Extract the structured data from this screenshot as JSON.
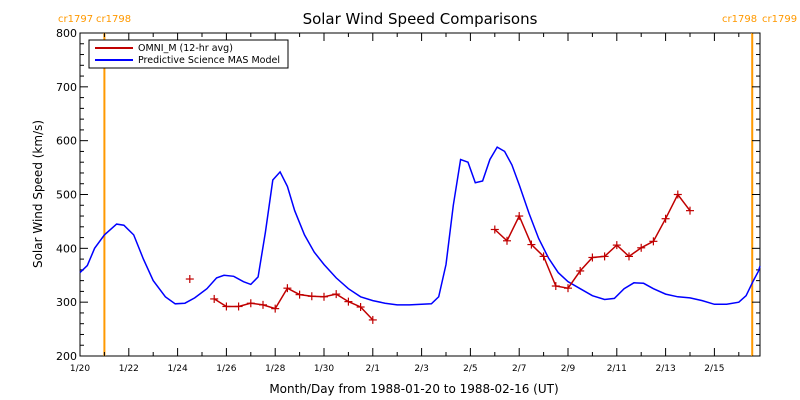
{
  "chart_data": {
    "type": "line",
    "title": "Solar Wind Speed Comparisons",
    "xlabel": "Month/Day from 1988-01-20 to 1988-02-16 (UT)",
    "ylabel": "Solar Wind Speed (km/s)",
    "x_unit": "day",
    "xlim": [
      0,
      27.6
    ],
    "ylim": [
      200,
      800
    ],
    "x_ticks": [
      {
        "x": 0,
        "label": "1/20"
      },
      {
        "x": 2,
        "label": "1/22"
      },
      {
        "x": 4,
        "label": "1/24"
      },
      {
        "x": 6,
        "label": "1/26"
      },
      {
        "x": 8,
        "label": "1/28"
      },
      {
        "x": 10,
        "label": "1/30"
      },
      {
        "x": 12,
        "label": "2/1"
      },
      {
        "x": 14,
        "label": "2/3"
      },
      {
        "x": 16,
        "label": "2/5"
      },
      {
        "x": 18,
        "label": "2/7"
      },
      {
        "x": 20,
        "label": "2/9"
      },
      {
        "x": 22,
        "label": "2/11"
      },
      {
        "x": 24,
        "label": "2/13"
      },
      {
        "x": 26,
        "label": "2/15"
      }
    ],
    "y_ticks": [
      200,
      300,
      400,
      500,
      600,
      700,
      800
    ],
    "grid": false,
    "legend_position": "top-left",
    "colors": {
      "omni": "#c00000",
      "model": "#0000ff",
      "rotation": "#ff9900"
    },
    "carrington_rotations": [
      {
        "x": 1.0,
        "label_left": "cr1797",
        "label_right": "cr1798"
      },
      {
        "x": 27.55,
        "label_left": "cr1798",
        "label_right": "cr1799"
      }
    ],
    "series": [
      {
        "name": "OMNI_M (12-hr avg)",
        "color": "#c00000",
        "marker": "+",
        "segments": [
          [
            [
              4.5,
              343
            ]
          ],
          [
            [
              5.5,
              306
            ],
            [
              6.0,
              292
            ],
            [
              6.5,
              292
            ],
            [
              7.0,
              298
            ],
            [
              7.5,
              295
            ],
            [
              8.0,
              288
            ],
            [
              8.5,
              326
            ],
            [
              9.0,
              314
            ],
            [
              9.5,
              311
            ],
            [
              10.0,
              310
            ],
            [
              10.5,
              315
            ],
            [
              11.0,
              301
            ],
            [
              11.5,
              291
            ],
            [
              12.0,
              267
            ]
          ],
          [
            [
              17.0,
              435
            ],
            [
              17.5,
              414
            ],
            [
              18.0,
              460
            ],
            [
              18.5,
              407
            ],
            [
              19.0,
              385
            ],
            [
              19.5,
              330
            ],
            [
              20.0,
              326
            ],
            [
              20.5,
              358
            ],
            [
              21.0,
              383
            ],
            [
              21.5,
              385
            ],
            [
              22.0,
              406
            ],
            [
              22.5,
              385
            ],
            [
              23.0,
              401
            ],
            [
              23.5,
              413
            ],
            [
              24.0,
              455
            ],
            [
              24.5,
              500
            ],
            [
              25.0,
              470
            ]
          ]
        ]
      },
      {
        "name": "Predictive Science MAS Model",
        "color": "#0000ff",
        "points": [
          [
            0.0,
            355
          ],
          [
            0.3,
            368
          ],
          [
            0.6,
            400
          ],
          [
            1.0,
            425
          ],
          [
            1.5,
            445
          ],
          [
            1.8,
            443
          ],
          [
            2.2,
            425
          ],
          [
            2.6,
            380
          ],
          [
            3.0,
            340
          ],
          [
            3.5,
            310
          ],
          [
            3.9,
            297
          ],
          [
            4.3,
            298
          ],
          [
            4.7,
            308
          ],
          [
            5.2,
            325
          ],
          [
            5.6,
            345
          ],
          [
            5.9,
            350
          ],
          [
            6.3,
            348
          ],
          [
            6.7,
            338
          ],
          [
            7.0,
            333
          ],
          [
            7.3,
            347
          ],
          [
            7.6,
            430
          ],
          [
            7.9,
            527
          ],
          [
            8.2,
            542
          ],
          [
            8.5,
            515
          ],
          [
            8.8,
            470
          ],
          [
            9.2,
            425
          ],
          [
            9.6,
            393
          ],
          [
            10.0,
            370
          ],
          [
            10.5,
            345
          ],
          [
            11.0,
            325
          ],
          [
            11.5,
            310
          ],
          [
            12.0,
            303
          ],
          [
            12.5,
            298
          ],
          [
            13.0,
            295
          ],
          [
            13.5,
            295
          ],
          [
            14.0,
            296
          ],
          [
            14.4,
            297
          ],
          [
            14.7,
            310
          ],
          [
            15.0,
            370
          ],
          [
            15.3,
            480
          ],
          [
            15.6,
            565
          ],
          [
            15.9,
            560
          ],
          [
            16.2,
            522
          ],
          [
            16.5,
            525
          ],
          [
            16.8,
            565
          ],
          [
            17.1,
            588
          ],
          [
            17.4,
            580
          ],
          [
            17.7,
            555
          ],
          [
            18.0,
            518
          ],
          [
            18.4,
            465
          ],
          [
            18.8,
            418
          ],
          [
            19.2,
            382
          ],
          [
            19.6,
            355
          ],
          [
            20.0,
            338
          ],
          [
            20.5,
            325
          ],
          [
            21.0,
            312
          ],
          [
            21.5,
            305
          ],
          [
            21.9,
            307
          ],
          [
            22.3,
            325
          ],
          [
            22.7,
            336
          ],
          [
            23.1,
            335
          ],
          [
            23.5,
            325
          ],
          [
            24.0,
            315
          ],
          [
            24.5,
            310
          ],
          [
            25.0,
            308
          ],
          [
            25.5,
            303
          ],
          [
            26.0,
            296
          ],
          [
            26.5,
            296
          ],
          [
            27.0,
            300
          ],
          [
            27.3,
            312
          ],
          [
            27.6,
            340
          ],
          [
            27.8,
            357
          ],
          [
            28.0,
            367
          ]
        ]
      }
    ]
  }
}
